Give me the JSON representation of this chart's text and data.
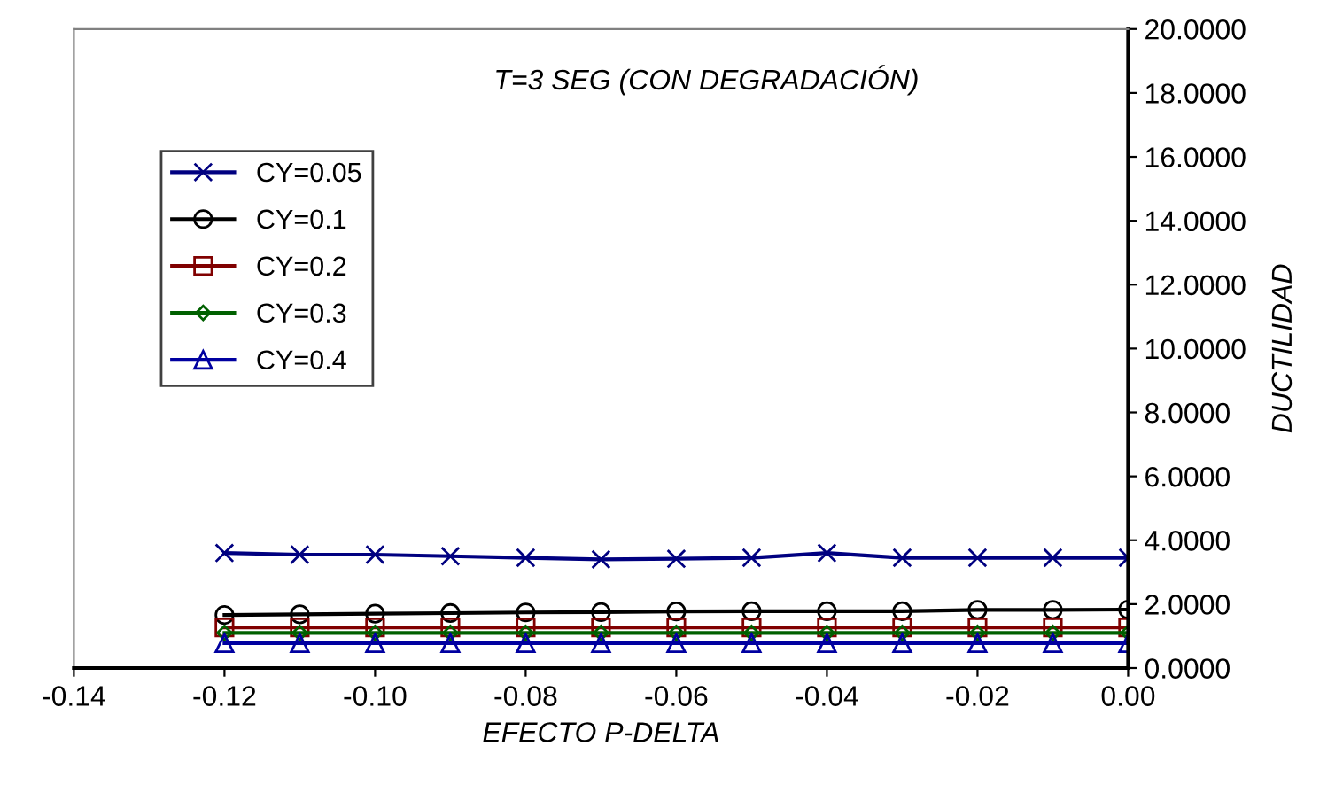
{
  "chart_data": {
    "type": "line",
    "title": "T=3 SEG (CON DEGRADACIÓN)",
    "xlabel": "EFECTO P-DELTA",
    "ylabel": "DUCTILIDAD",
    "x": [
      -0.12,
      -0.11,
      -0.1,
      -0.09,
      -0.08,
      -0.07,
      -0.06,
      -0.05,
      -0.04,
      -0.03,
      -0.02,
      -0.01,
      0.0
    ],
    "xlim": [
      -0.14,
      0.0
    ],
    "xticks": [
      {
        "value": -0.14,
        "label": "-0.14"
      },
      {
        "value": -0.12,
        "label": "-0.12"
      },
      {
        "value": -0.1,
        "label": "-0.10"
      },
      {
        "value": -0.08,
        "label": "-0.08"
      },
      {
        "value": -0.06,
        "label": "-0.06"
      },
      {
        "value": -0.04,
        "label": "-0.04"
      },
      {
        "value": -0.02,
        "label": "-0.02"
      },
      {
        "value": 0.0,
        "label": "0.00"
      }
    ],
    "ylim": [
      0,
      20
    ],
    "yticks": [
      {
        "value": 0,
        "label": "0.0000"
      },
      {
        "value": 2,
        "label": "2.0000"
      },
      {
        "value": 4,
        "label": "4.0000"
      },
      {
        "value": 6,
        "label": "6.0000"
      },
      {
        "value": 8,
        "label": "8.0000"
      },
      {
        "value": 10,
        "label": "10.0000"
      },
      {
        "value": 12,
        "label": "12.0000"
      },
      {
        "value": 14,
        "label": "14.0000"
      },
      {
        "value": 16,
        "label": "16.0000"
      },
      {
        "value": 18,
        "label": "18.0000"
      },
      {
        "value": 20,
        "label": "20.0000"
      }
    ],
    "grid": false,
    "legend": "top left",
    "series": [
      {
        "name": "CY=0.05",
        "color": "#000080",
        "marker": "cross",
        "values": [
          3.6,
          3.55,
          3.55,
          3.5,
          3.45,
          3.4,
          3.42,
          3.45,
          3.6,
          3.45,
          3.45,
          3.45,
          3.45
        ]
      },
      {
        "name": "CY=0.1",
        "color": "#000000",
        "marker": "circle",
        "values": [
          1.66,
          1.68,
          1.7,
          1.72,
          1.74,
          1.75,
          1.77,
          1.78,
          1.78,
          1.78,
          1.82,
          1.82,
          1.83
        ]
      },
      {
        "name": "CY=0.2",
        "color": "#800000",
        "marker": "square",
        "values": [
          1.27,
          1.27,
          1.27,
          1.27,
          1.27,
          1.27,
          1.27,
          1.27,
          1.27,
          1.27,
          1.27,
          1.27,
          1.27
        ]
      },
      {
        "name": "CY=0.3",
        "color": "#006000",
        "marker": "diamond",
        "values": [
          1.1,
          1.1,
          1.1,
          1.1,
          1.1,
          1.1,
          1.1,
          1.1,
          1.1,
          1.1,
          1.1,
          1.1,
          1.1
        ]
      },
      {
        "name": "CY=0.4",
        "color": "#0000a0",
        "marker": "triangle",
        "values": [
          0.78,
          0.78,
          0.78,
          0.78,
          0.78,
          0.78,
          0.78,
          0.78,
          0.78,
          0.78,
          0.78,
          0.78,
          0.78
        ]
      }
    ]
  }
}
